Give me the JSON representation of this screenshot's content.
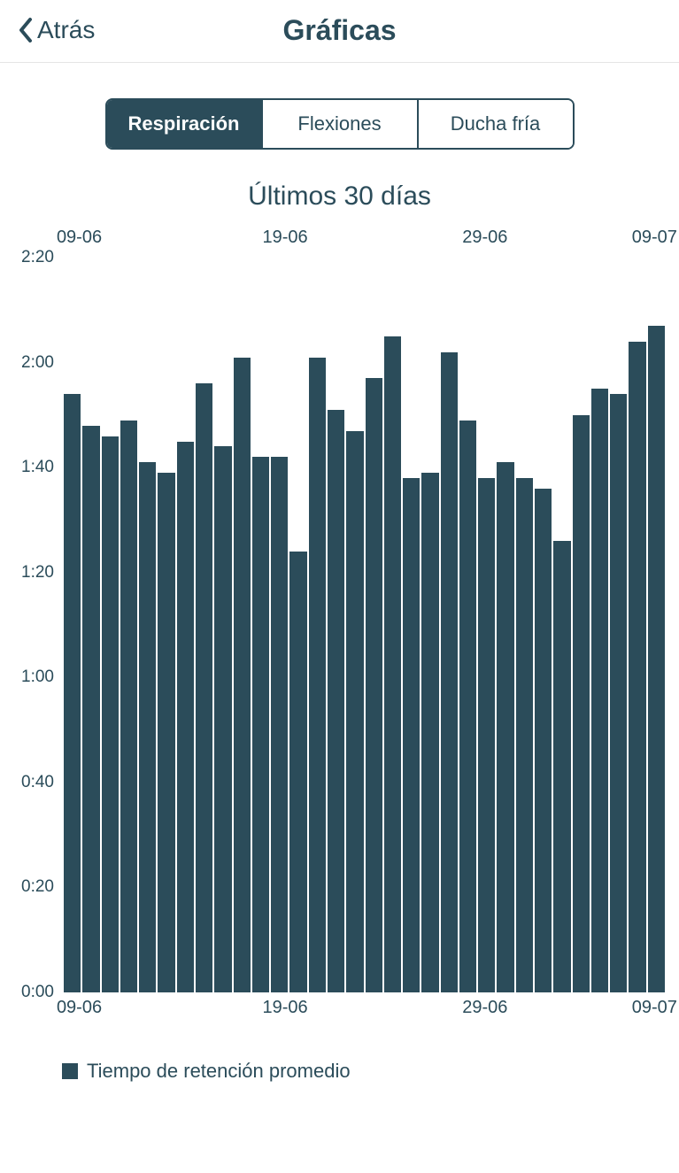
{
  "header": {
    "back_label": "Atrás",
    "title": "Gráficas"
  },
  "tabs": {
    "items": [
      {
        "label": "Respiración",
        "active": true
      },
      {
        "label": "Flexiones",
        "active": false
      },
      {
        "label": "Ducha fría",
        "active": false
      }
    ]
  },
  "chart": {
    "title": "Últimos 30 días",
    "type": "bar",
    "bar_color": "#2b4c5a",
    "background_color": "#ffffff",
    "text_color": "#2b4c5a",
    "y_axis": {
      "min_sec": 0,
      "max_sec": 140,
      "ticks": [
        {
          "label": "2:20",
          "sec": 140
        },
        {
          "label": "2:00",
          "sec": 120
        },
        {
          "label": "1:40",
          "sec": 100
        },
        {
          "label": "1:20",
          "sec": 80
        },
        {
          "label": "1:00",
          "sec": 60
        },
        {
          "label": "0:40",
          "sec": 40
        },
        {
          "label": "0:20",
          "sec": 20
        },
        {
          "label": "0:00",
          "sec": 0
        }
      ]
    },
    "x_axis_top": [
      {
        "label": "09-06",
        "pos": 0.03
      },
      {
        "label": "19-06",
        "pos": 0.37
      },
      {
        "label": "29-06",
        "pos": 0.7
      },
      {
        "label": "09-07",
        "pos": 0.98
      }
    ],
    "x_axis_bottom": [
      {
        "label": "09-06",
        "pos": 0.03
      },
      {
        "label": "19-06",
        "pos": 0.37
      },
      {
        "label": "29-06",
        "pos": 0.7
      },
      {
        "label": "09-07",
        "pos": 0.98
      }
    ],
    "values_sec": [
      114,
      108,
      106,
      109,
      101,
      99,
      105,
      116,
      104,
      121,
      102,
      102,
      84,
      121,
      111,
      107,
      117,
      125,
      98,
      99,
      122,
      109,
      98,
      101,
      98,
      96,
      86,
      110,
      115,
      114,
      124,
      127
    ],
    "legend_label": "Tiempo de retención promedio"
  }
}
